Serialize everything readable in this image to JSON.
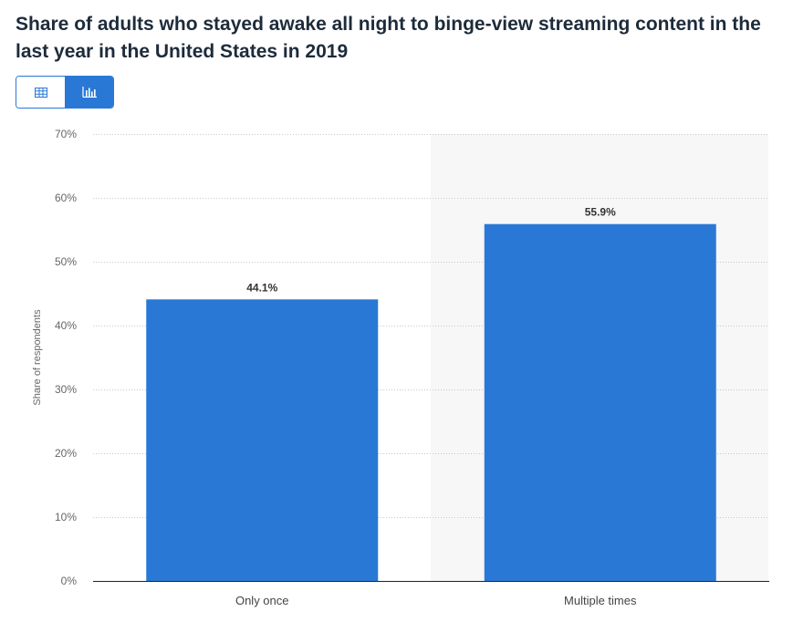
{
  "title": "Share of adults who stayed awake all night to binge-view streaming content in the last year in the United States in 2019",
  "toolbar": {
    "table_icon": "table-icon",
    "chart_icon": "bar-chart-icon"
  },
  "colors": {
    "bar": "#2a78d6",
    "accent": "#2a78d6",
    "highlight_band": "#f7f7f7"
  },
  "chart_data": {
    "type": "bar",
    "categories": [
      "Only once",
      "Multiple times"
    ],
    "values": [
      44.1,
      55.9
    ],
    "value_labels": [
      "44.1%",
      "55.9%"
    ],
    "ylabel": "Share of respondents",
    "ylim": [
      0,
      70
    ],
    "yticks": [
      "0%",
      "10%",
      "20%",
      "30%",
      "40%",
      "50%",
      "60%",
      "70%"
    ],
    "grid": true
  }
}
